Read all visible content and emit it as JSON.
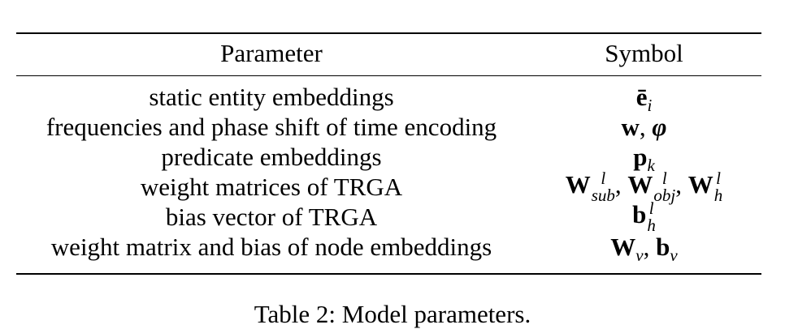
{
  "table": {
    "headers": {
      "parameter": "Parameter",
      "symbol": "Symbol"
    },
    "rows": [
      {
        "parameter": "static entity embeddings",
        "symbol": {
          "base": "ē",
          "sub": "i"
        }
      },
      {
        "parameter": "frequencies and phase shift of time encoding",
        "symbol": {
          "w": "w",
          "sep": ", ",
          "phi": "φ"
        }
      },
      {
        "parameter": "predicate embeddings",
        "symbol": {
          "base": "p",
          "sub": "k"
        }
      },
      {
        "parameter": "weight matrices of TRGA",
        "symbol": {
          "terms": [
            {
              "base": "W",
              "sup": "l",
              "sub": "sub"
            },
            {
              "base": "W",
              "sup": "l",
              "sub": "obj"
            },
            {
              "base": "W",
              "sup": "l",
              "sub": "h"
            }
          ],
          "sep": ", "
        }
      },
      {
        "parameter": "bias vector of TRGA",
        "symbol": {
          "base": "b",
          "sup": "l",
          "sub": "h"
        }
      },
      {
        "parameter": "weight matrix and bias of node embeddings",
        "symbol": {
          "terms": [
            {
              "base": "W",
              "sub": "v"
            },
            {
              "base": "b",
              "sub": "v"
            }
          ],
          "sep": ", "
        }
      }
    ]
  },
  "caption": "Table 2: Model parameters."
}
